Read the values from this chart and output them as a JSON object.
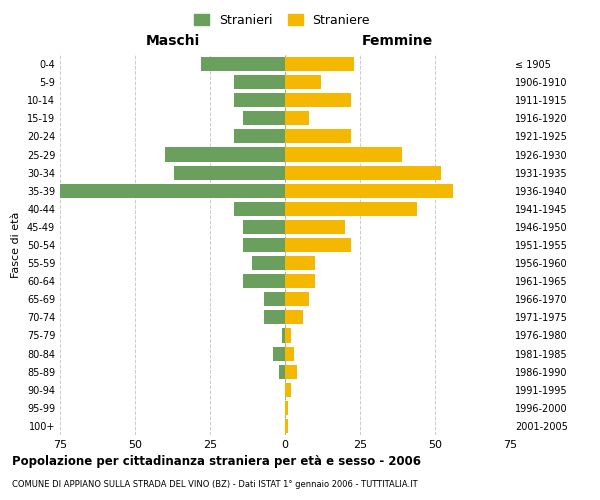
{
  "age_groups": [
    "0-4",
    "5-9",
    "10-14",
    "15-19",
    "20-24",
    "25-29",
    "30-34",
    "35-39",
    "40-44",
    "45-49",
    "50-54",
    "55-59",
    "60-64",
    "65-69",
    "70-74",
    "75-79",
    "80-84",
    "85-89",
    "90-94",
    "95-99",
    "100+"
  ],
  "birth_years": [
    "2001-2005",
    "1996-2000",
    "1991-1995",
    "1986-1990",
    "1981-1985",
    "1976-1980",
    "1971-1975",
    "1966-1970",
    "1961-1965",
    "1956-1960",
    "1951-1955",
    "1946-1950",
    "1941-1945",
    "1936-1940",
    "1931-1935",
    "1926-1930",
    "1921-1925",
    "1916-1920",
    "1911-1915",
    "1906-1910",
    "≤ 1905"
  ],
  "maschi": [
    28,
    17,
    17,
    14,
    17,
    40,
    37,
    75,
    17,
    14,
    14,
    11,
    14,
    7,
    7,
    1,
    4,
    2,
    0,
    0,
    0
  ],
  "femmine": [
    23,
    12,
    22,
    8,
    22,
    39,
    52,
    56,
    44,
    20,
    22,
    10,
    10,
    8,
    6,
    2,
    3,
    4,
    2,
    1,
    1
  ],
  "color_maschi": "#6a9f5e",
  "color_femmine": "#f5b800",
  "background_color": "#ffffff",
  "grid_color": "#cccccc",
  "title": "Popolazione per cittadinanza straniera per età e sesso - 2006",
  "subtitle": "COMUNE DI APPIANO SULLA STRADA DEL VINO (BZ) - Dati ISTAT 1° gennaio 2006 - TUTTITALIA.IT",
  "ylabel_left": "Fasce di età",
  "xlabel_left": "Maschi",
  "xlabel_right": "Femmine",
  "legend_maschi": "Stranieri",
  "legend_femmine": "Straniere",
  "xlim": 75
}
